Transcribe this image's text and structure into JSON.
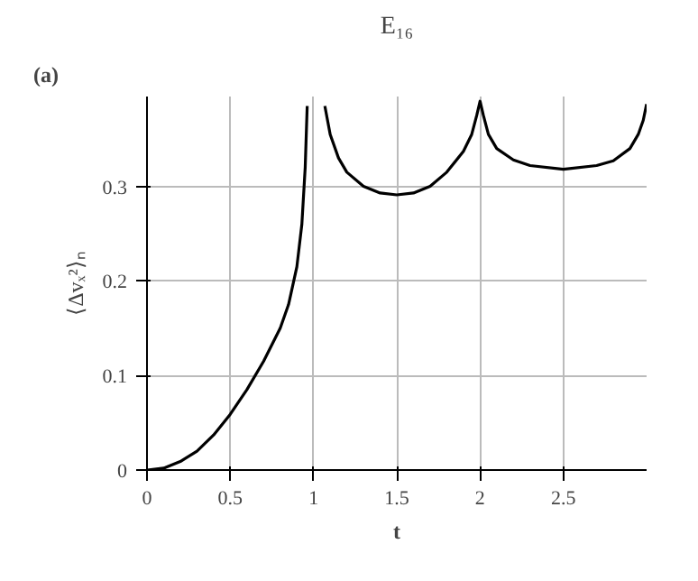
{
  "chart_data": {
    "type": "line",
    "title": "E₁₆",
    "xlabel": "t",
    "ylabel": "⟨Δvₓ²⟩ₙ",
    "annotations": [
      "(a)"
    ],
    "x": [
      0,
      0.1,
      0.2,
      0.3,
      0.4,
      0.5,
      0.6,
      0.7,
      0.8,
      0.85,
      0.9,
      0.93,
      0.95,
      0.962,
      1.0,
      1.068,
      1.1,
      1.15,
      1.2,
      1.3,
      1.4,
      1.5,
      1.6,
      1.7,
      1.8,
      1.9,
      1.95,
      1.98,
      2.0,
      2.02,
      2.05,
      2.1,
      2.2,
      2.3,
      2.5,
      2.7,
      2.8,
      2.9,
      2.95,
      2.98,
      3.0
    ],
    "series": [
      {
        "color": "#000000",
        "values": [
          0,
          0.002,
          0.009,
          0.02,
          0.037,
          0.059,
          0.085,
          0.115,
          0.15,
          0.175,
          0.215,
          0.26,
          0.32,
          0.385,
          null,
          0.385,
          0.355,
          0.33,
          0.315,
          0.3,
          0.293,
          0.291,
          0.293,
          0.3,
          0.315,
          0.337,
          0.355,
          0.375,
          0.39,
          0.375,
          0.355,
          0.34,
          0.328,
          0.322,
          0.318,
          0.322,
          0.327,
          0.34,
          0.355,
          0.37,
          0.387
        ]
      }
    ],
    "xlim": [
      0,
      3
    ],
    "ylim": [
      0,
      0.395
    ],
    "xticks": [
      0,
      0.5,
      1,
      1.5,
      2,
      2.5
    ],
    "yticks": [
      0,
      0.1,
      0.2,
      0.3
    ],
    "grid": true,
    "marker": "none",
    "line_style": "solid"
  }
}
